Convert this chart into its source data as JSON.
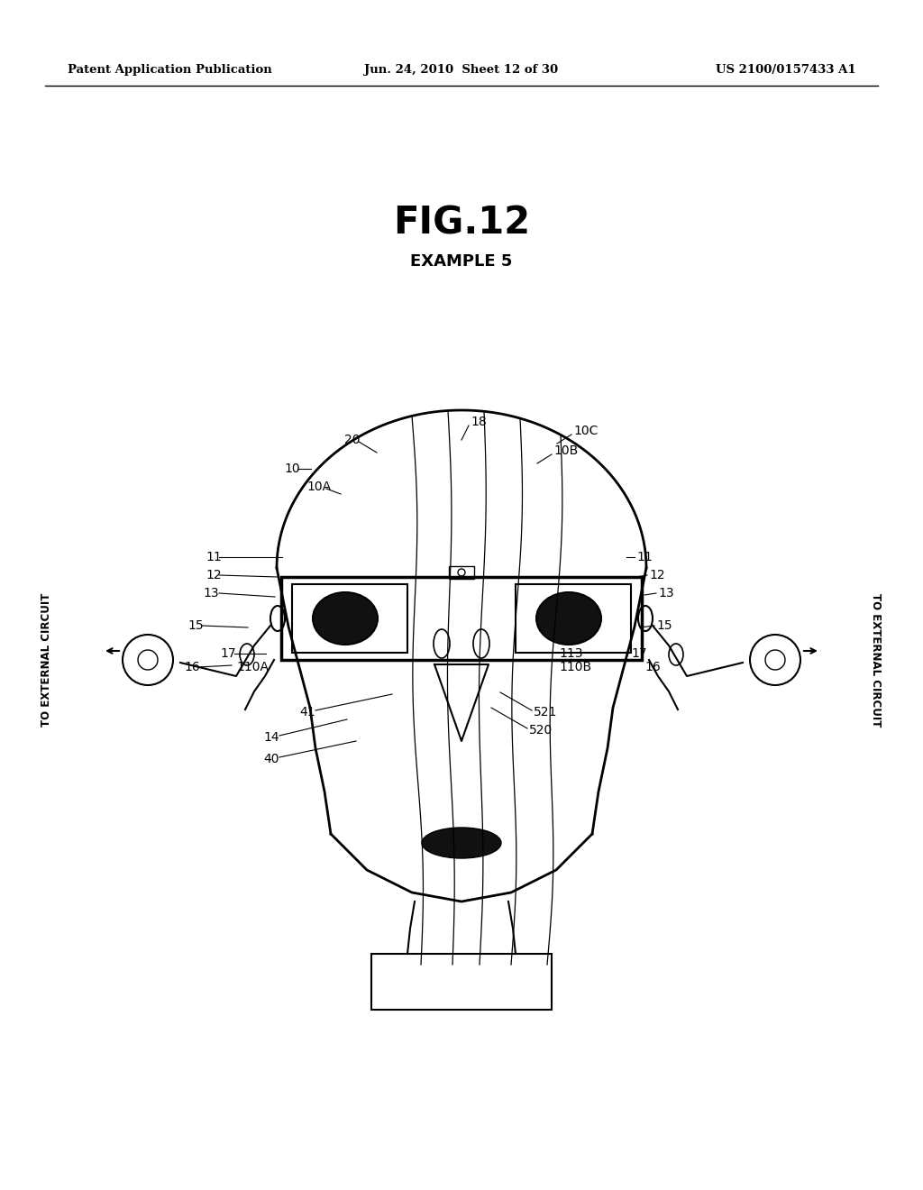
{
  "bg_color": "#ffffff",
  "line_color": "#000000",
  "header_left": "Patent Application Publication",
  "header_mid": "Jun. 24, 2010  Sheet 12 of 30",
  "header_right": "US 2100/0157433 A1",
  "fig_title": "FIG.12",
  "fig_subtitle": "EXAMPLE 5"
}
